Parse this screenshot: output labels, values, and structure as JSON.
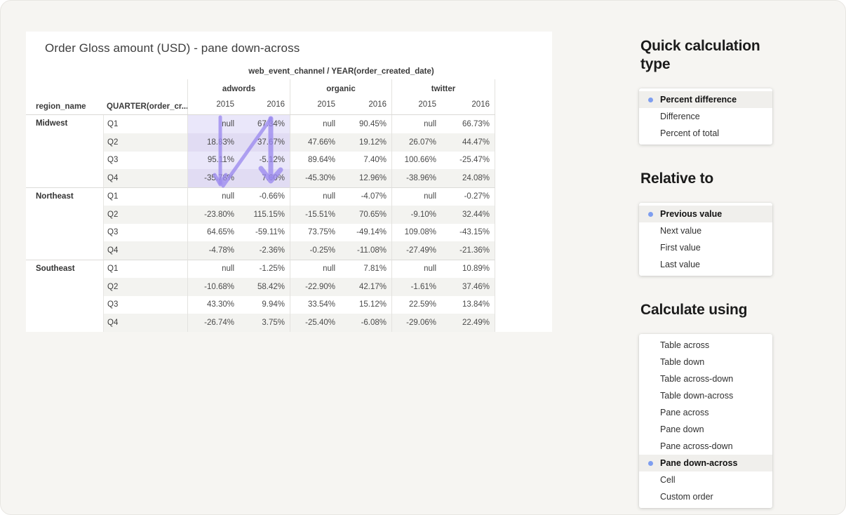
{
  "colors": {
    "page_bg": "#f6f5f2",
    "highlight_purple_light": "#eae7fa",
    "highlight_purple_dark": "#e1dcf3",
    "arrow_purple": "#9b8aee",
    "selected_dot_blue": "#7e9ef0",
    "selected_row_bg": "#f0efec"
  },
  "table": {
    "title": "Order Gloss amount (USD) - pane down-across",
    "top_header": "web_event_channel / YEAR(order_created_date)",
    "row_header_cols": [
      "region_name",
      "QUARTER(order_cr..."
    ],
    "groups": [
      {
        "label": "adwords",
        "years": [
          "2015",
          "2016"
        ]
      },
      {
        "label": "organic",
        "years": [
          "2015",
          "2016"
        ]
      },
      {
        "label": "twitter",
        "years": [
          "2015",
          "2016"
        ]
      }
    ],
    "panes": [
      {
        "region": "Midwest",
        "highlighted": true,
        "rows": [
          {
            "quarter": "Q1",
            "values": [
              "null",
              "67.34%",
              "null",
              "90.45%",
              "null",
              "66.73%"
            ]
          },
          {
            "quarter": "Q2",
            "values": [
              "18.83%",
              "37.67%",
              "47.66%",
              "19.12%",
              "26.07%",
              "44.47%"
            ]
          },
          {
            "quarter": "Q3",
            "values": [
              "95.11%",
              "-5.12%",
              "89.64%",
              "7.40%",
              "100.66%",
              "-25.47%"
            ]
          },
          {
            "quarter": "Q4",
            "values": [
              "-35.78%",
              "7.60%",
              "-45.30%",
              "12.96%",
              "-38.96%",
              "24.08%"
            ]
          }
        ]
      },
      {
        "region": "Northeast",
        "highlighted": false,
        "rows": [
          {
            "quarter": "Q1",
            "values": [
              "null",
              "-0.66%",
              "null",
              "-4.07%",
              "null",
              "-0.27%"
            ]
          },
          {
            "quarter": "Q2",
            "values": [
              "-23.80%",
              "115.15%",
              "-15.51%",
              "70.65%",
              "-9.10%",
              "32.44%"
            ]
          },
          {
            "quarter": "Q3",
            "values": [
              "64.65%",
              "-59.11%",
              "73.75%",
              "-49.14%",
              "109.08%",
              "-43.15%"
            ]
          },
          {
            "quarter": "Q4",
            "values": [
              "-4.78%",
              "-2.36%",
              "-0.25%",
              "-11.08%",
              "-27.49%",
              "-21.36%"
            ]
          }
        ]
      },
      {
        "region": "Southeast",
        "highlighted": false,
        "rows": [
          {
            "quarter": "Q1",
            "values": [
              "null",
              "-1.25%",
              "null",
              "7.81%",
              "null",
              "10.89%"
            ]
          },
          {
            "quarter": "Q2",
            "values": [
              "-10.68%",
              "58.42%",
              "-22.90%",
              "42.17%",
              "-1.61%",
              "37.46%"
            ]
          },
          {
            "quarter": "Q3",
            "values": [
              "43.30%",
              "9.94%",
              "33.54%",
              "15.12%",
              "22.59%",
              "13.84%"
            ]
          },
          {
            "quarter": "Q4",
            "values": [
              "-26.74%",
              "3.75%",
              "-25.40%",
              "-6.08%",
              "-29.06%",
              "22.49%"
            ]
          }
        ]
      }
    ]
  },
  "panels": [
    {
      "title": "Quick calculation type",
      "options": [
        {
          "label": "Percent difference",
          "selected": true
        },
        {
          "label": "Difference",
          "selected": false
        },
        {
          "label": "Percent of total",
          "selected": false
        }
      ]
    },
    {
      "title": "Relative to",
      "options": [
        {
          "label": "Previous value",
          "selected": true
        },
        {
          "label": "Next value",
          "selected": false
        },
        {
          "label": "First value",
          "selected": false
        },
        {
          "label": "Last value",
          "selected": false
        }
      ]
    },
    {
      "title": "Calculate using",
      "options": [
        {
          "label": "Table across",
          "selected": false
        },
        {
          "label": "Table down",
          "selected": false
        },
        {
          "label": "Table across-down",
          "selected": false
        },
        {
          "label": "Table down-across",
          "selected": false
        },
        {
          "label": "Pane across",
          "selected": false
        },
        {
          "label": "Pane down",
          "selected": false
        },
        {
          "label": "Pane across-down",
          "selected": false
        },
        {
          "label": "Pane down-across",
          "selected": true
        },
        {
          "label": "Cell",
          "selected": false
        },
        {
          "label": "Custom order",
          "selected": false
        }
      ]
    }
  ]
}
